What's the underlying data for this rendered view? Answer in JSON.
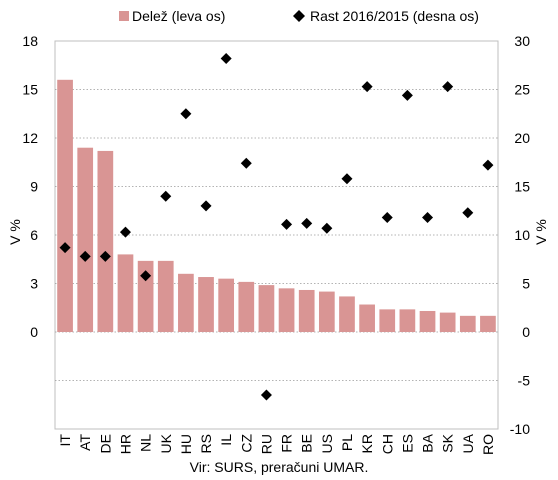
{
  "chart_data": {
    "type": "bar",
    "categories": [
      "IT",
      "AT",
      "DE",
      "HR",
      "NL",
      "UK",
      "HU",
      "RS",
      "IL",
      "CZ",
      "RU",
      "FR",
      "BE",
      "US",
      "PL",
      "KR",
      "CH",
      "ES",
      "BA",
      "SK",
      "UA",
      "RO"
    ],
    "series": [
      {
        "name": "Delež (leva os)",
        "type": "bar",
        "axis": "left",
        "color": "#d99594",
        "values": [
          15.6,
          11.4,
          11.2,
          4.8,
          4.4,
          4.4,
          3.6,
          3.4,
          3.3,
          3.1,
          2.9,
          2.7,
          2.6,
          2.5,
          2.2,
          1.7,
          1.4,
          1.4,
          1.3,
          1.2,
          1.0,
          1.0
        ]
      },
      {
        "name": "Rast 2016/2015 (desna os)",
        "type": "scatter",
        "axis": "right",
        "marker": "diamond",
        "color": "#000000",
        "values": [
          8.7,
          7.8,
          7.8,
          10.3,
          5.8,
          14.0,
          22.5,
          13.0,
          28.2,
          17.4,
          -6.5,
          11.1,
          11.2,
          10.7,
          15.8,
          25.3,
          11.8,
          24.4,
          11.8,
          25.3,
          12.3,
          17.2
        ]
      }
    ],
    "y_left": {
      "label": "V %",
      "ticks": [
        0,
        3,
        6,
        9,
        12,
        15,
        18
      ],
      "range": [
        -6,
        18
      ]
    },
    "y_right": {
      "label": "V %",
      "ticks": [
        -10,
        -5,
        0,
        5,
        10,
        15,
        20,
        25,
        30
      ],
      "range": [
        -10,
        30
      ]
    },
    "legend": {
      "position": "top"
    },
    "grid": true,
    "source": "Vir: SURS, preračuni UMAR."
  }
}
